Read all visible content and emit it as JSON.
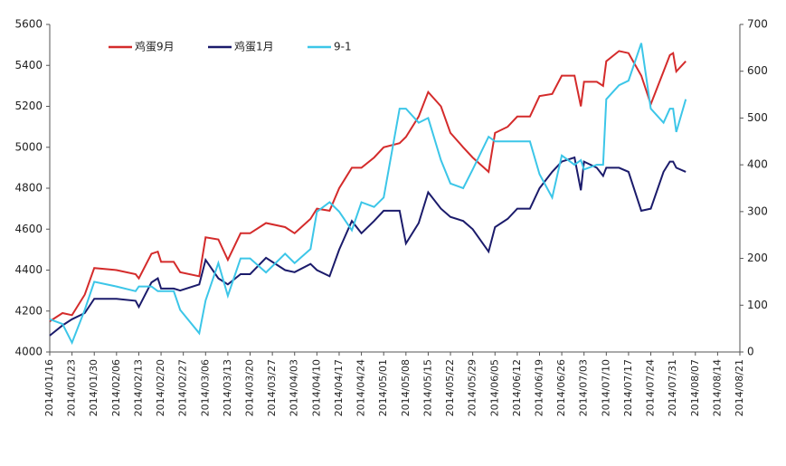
{
  "chart_data": {
    "type": "line",
    "x": [
      "2014/01/16",
      "2014/01/20",
      "2014/01/23",
      "2014/01/27",
      "2014/01/30",
      "2014/02/06",
      "2014/02/12",
      "2014/02/13",
      "2014/02/17",
      "2014/02/19",
      "2014/02/20",
      "2014/02/24",
      "2014/02/26",
      "2014/03/04",
      "2014/03/06",
      "2014/03/10",
      "2014/03/13",
      "2014/03/17",
      "2014/03/20",
      "2014/03/25",
      "2014/03/31",
      "2014/04/03",
      "2014/04/08",
      "2014/04/10",
      "2014/04/14",
      "2014/04/17",
      "2014/04/21",
      "2014/04/24",
      "2014/04/28",
      "2014/05/01",
      "2014/05/06",
      "2014/05/08",
      "2014/05/12",
      "2014/05/15",
      "2014/05/19",
      "2014/05/22",
      "2014/05/26",
      "2014/05/29",
      "2014/06/03",
      "2014/06/05",
      "2014/06/09",
      "2014/06/12",
      "2014/06/16",
      "2014/06/19",
      "2014/06/23",
      "2014/06/26",
      "2014/06/30",
      "2014/07/02",
      "2014/07/03",
      "2014/07/07",
      "2014/07/09",
      "2014/07/10",
      "2014/07/14",
      "2014/07/17",
      "2014/07/21",
      "2014/07/24",
      "2014/07/28",
      "2014/07/30",
      "2014/07/31",
      "2014/08/01",
      "2014/08/04"
    ],
    "series": [
      {
        "name": "鸡蛋9月",
        "color": "#d42b2b",
        "values": [
          4150,
          4190,
          4180,
          4280,
          4410,
          4400,
          4380,
          4360,
          4480,
          4490,
          4440,
          4440,
          4390,
          4370,
          4560,
          4550,
          4450,
          4580,
          4580,
          4630,
          4610,
          4580,
          4650,
          4700,
          4690,
          4800,
          4900,
          4900,
          4950,
          5000,
          5020,
          5050,
          5150,
          5270,
          5200,
          5070,
          5000,
          4950,
          4880,
          5070,
          5100,
          5150,
          5150,
          5250,
          5260,
          5350,
          5350,
          5200,
          5320,
          5320,
          5300,
          5420,
          5470,
          5460,
          5350,
          5210,
          5370,
          5450,
          5460,
          5370,
          5420
        ]
      },
      {
        "name": "鸡蛋1月",
        "color": "#1b1b6b",
        "values": [
          4080,
          4130,
          4160,
          4190,
          4260,
          4260,
          4250,
          4220,
          4340,
          4360,
          4310,
          4310,
          4300,
          4330,
          4450,
          4360,
          4330,
          4380,
          4380,
          4460,
          4400,
          4390,
          4430,
          4400,
          4370,
          4500,
          4640,
          4580,
          4640,
          4690,
          4690,
          4530,
          4630,
          4780,
          4700,
          4660,
          4640,
          4600,
          4490,
          4610,
          4650,
          4700,
          4700,
          4800,
          4880,
          4930,
          4950,
          4790,
          4930,
          4900,
          4860,
          4900,
          4900,
          4880,
          4690,
          4700,
          4880,
          4930,
          4930,
          4900,
          4880
        ]
      },
      {
        "name": "9-1",
        "color": "#3cc6e8",
        "axis": "y2",
        "values": [
          70,
          60,
          20,
          90,
          150,
          140,
          130,
          140,
          140,
          130,
          130,
          130,
          90,
          40,
          110,
          190,
          120,
          200,
          200,
          170,
          210,
          190,
          220,
          300,
          320,
          300,
          260,
          320,
          310,
          330,
          520,
          520,
          490,
          500,
          410,
          360,
          350,
          390,
          460,
          450,
          450,
          450,
          450,
          380,
          330,
          420,
          400,
          410,
          390,
          400,
          400,
          540,
          570,
          580,
          660,
          520,
          490,
          520,
          520,
          470,
          540
        ]
      }
    ],
    "xlim": [
      "2014/01/16",
      "2014/08/21"
    ],
    "xticks": [
      "2014/01/16",
      "2014/01/23",
      "2014/01/30",
      "2014/02/06",
      "2014/02/13",
      "2014/02/20",
      "2014/02/27",
      "2014/03/06",
      "2014/03/13",
      "2014/03/20",
      "2014/03/27",
      "2014/04/03",
      "2014/04/10",
      "2014/04/17",
      "2014/04/24",
      "2014/05/01",
      "2014/05/08",
      "2014/05/15",
      "2014/05/22",
      "2014/05/29",
      "2014/06/05",
      "2014/06/12",
      "2014/06/19",
      "2014/06/26",
      "2014/07/03",
      "2014/07/10",
      "2014/07/17",
      "2014/07/24",
      "2014/07/31",
      "2014/08/07",
      "2014/08/14",
      "2014/08/21"
    ],
    "ylim": [
      4000,
      5600
    ],
    "yticks": [
      4000,
      4200,
      4400,
      4600,
      4800,
      5000,
      5200,
      5400,
      5600
    ],
    "y2lim": [
      0,
      700
    ],
    "y2ticks": [
      0,
      100,
      200,
      300,
      400,
      500,
      600,
      700
    ],
    "legend": "top-left",
    "grid": false
  }
}
